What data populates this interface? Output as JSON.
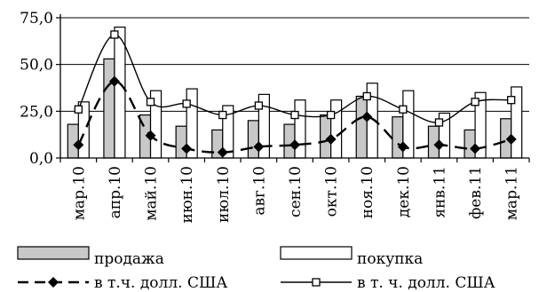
{
  "chart_data": {
    "type": "bar",
    "title": "",
    "xlabel": "",
    "ylabel": "",
    "ylim": [
      0,
      75
    ],
    "yticks": [
      "0,0",
      "25,0",
      "50,0",
      "75,0"
    ],
    "grid": "horizontal",
    "legend_position": "bottom",
    "categories": [
      "мар.10",
      "апр.10",
      "май.10",
      "июн.10",
      "июл.10",
      "авг.10",
      "сен.10",
      "окт.10",
      "ноя.10",
      "дек.10",
      "янв.11",
      "фев.11",
      "мар.11"
    ],
    "series": [
      {
        "name": "продажа",
        "kind": "bar",
        "color": "#c8c8c8",
        "values": [
          18,
          53,
          23,
          17,
          15,
          20,
          18,
          23,
          33,
          22,
          17,
          15,
          21
        ]
      },
      {
        "name": "покупка",
        "kind": "bar",
        "color": "#ffffff",
        "values": [
          30,
          70,
          36,
          37,
          28,
          34,
          31,
          31,
          40,
          36,
          24,
          35,
          38
        ]
      },
      {
        "name": "в т.ч. долл. США",
        "kind": "line",
        "style": "dashed",
        "marker": "diamond",
        "values": [
          7,
          41,
          12,
          5,
          3,
          6,
          7,
          10,
          22,
          6,
          7,
          5,
          10
        ]
      },
      {
        "name": "в т. ч. долл. США",
        "kind": "line",
        "style": "solid",
        "marker": "square",
        "values": [
          26,
          66,
          30,
          29,
          23,
          28,
          23,
          23,
          33,
          26,
          19,
          30,
          31
        ]
      }
    ]
  }
}
